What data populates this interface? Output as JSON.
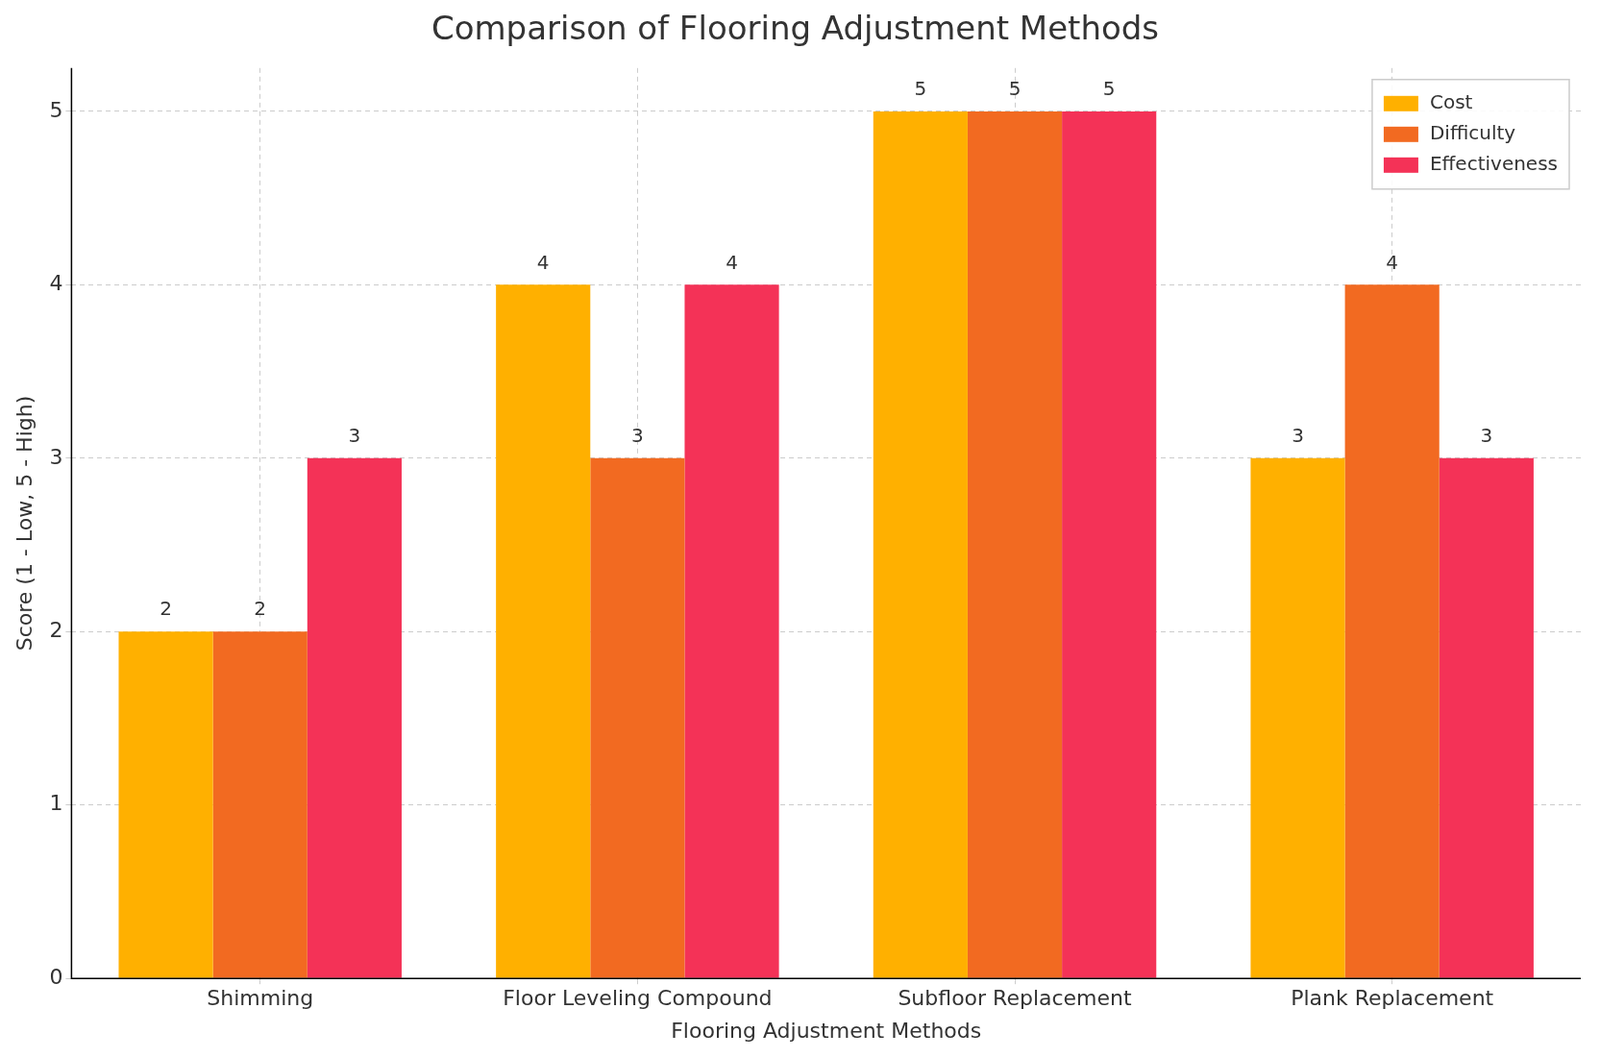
{
  "chart_data": {
    "type": "bar",
    "title": "Comparison of Flooring Adjustment Methods",
    "x_label": "Flooring Adjustment Methods",
    "y_label": "Score (1 - Low, 5 - High)",
    "categories": [
      "Shimming",
      "Floor Leveling Compound",
      "Subfloor Replacement",
      "Plank Replacement"
    ],
    "series": [
      {
        "name": "Cost",
        "color": "#ffb000",
        "values": [
          2,
          4,
          5,
          3
        ]
      },
      {
        "name": "Difficulty",
        "color": "#f26a21",
        "values": [
          2,
          3,
          5,
          4
        ]
      },
      {
        "name": "Effectiveness",
        "color": "#f43257",
        "values": [
          3,
          4,
          5,
          3
        ]
      }
    ],
    "ylim": [
      0,
      5.25
    ],
    "yticks": [
      0,
      1,
      2,
      3,
      4,
      5
    ],
    "grid": true,
    "legend": "upper right",
    "data_labels": true
  }
}
